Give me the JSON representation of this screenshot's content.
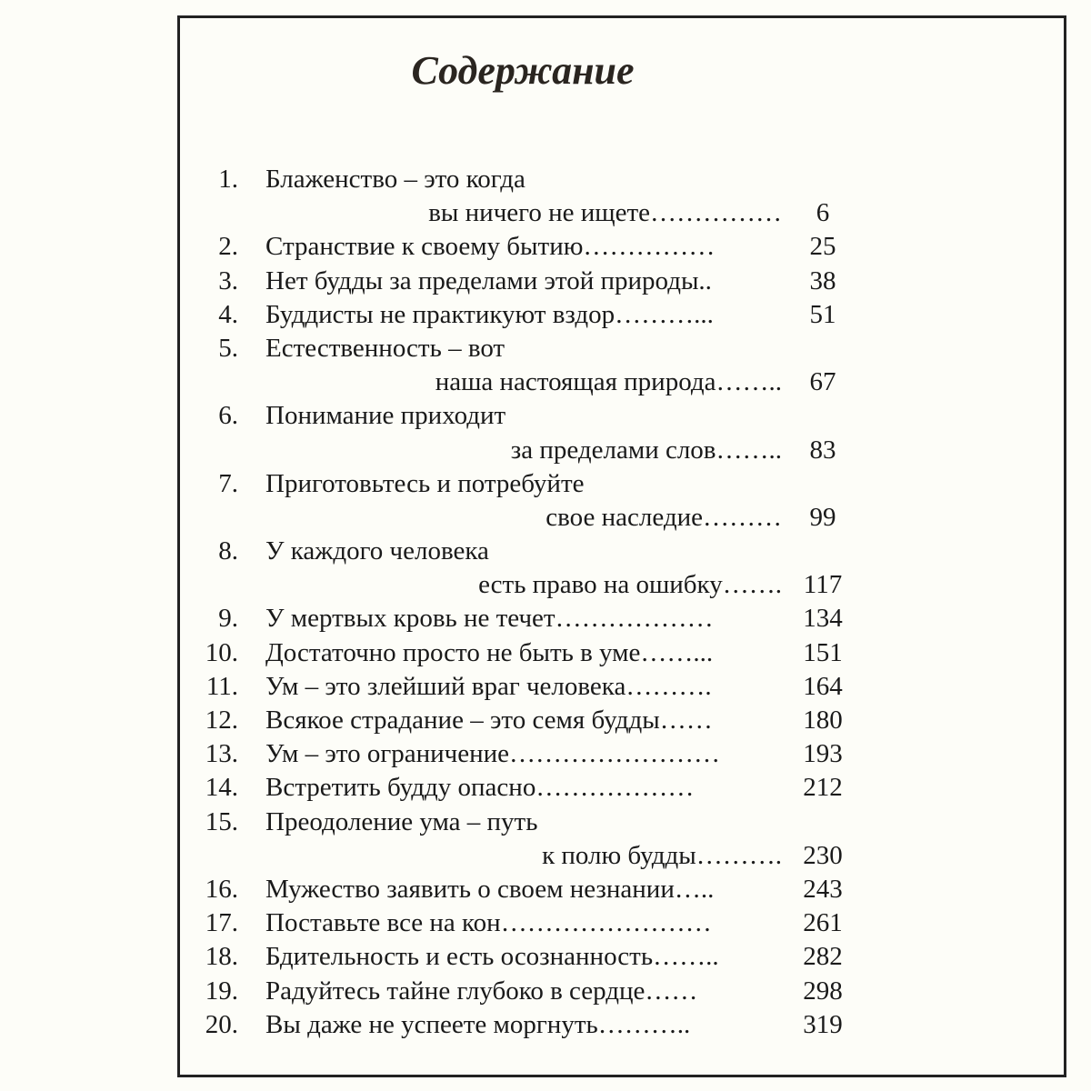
{
  "title": "Содержание",
  "entries": [
    {
      "num": "1.",
      "lines": [
        "Блаженство – это когда"
      ],
      "cont": "вы ничего не ищете……………",
      "page": "6"
    },
    {
      "num": "2.",
      "lines": [
        "Странствие к своему бытию……………"
      ],
      "page": "25"
    },
    {
      "num": "3.",
      "lines": [
        "Нет будды за пределами этой природы.."
      ],
      "page": "38"
    },
    {
      "num": "4.",
      "lines": [
        "Буддисты не практикуют вздор………..."
      ],
      "page": "51"
    },
    {
      "num": "5.",
      "lines": [
        "Естественность – вот"
      ],
      "cont": "наша настоящая природа……..",
      "page": "67"
    },
    {
      "num": "6.",
      "lines": [
        "Понимание приходит"
      ],
      "cont": "за пределами слов……..",
      "page": "83"
    },
    {
      "num": "7.",
      "lines": [
        "Приготовьтесь и потребуйте"
      ],
      "cont": "свое наследие………",
      "page": "99"
    },
    {
      "num": "8.",
      "lines": [
        "У каждого человека"
      ],
      "cont": "есть право на ошибку…….",
      "page": "117"
    },
    {
      "num": "9.",
      "lines": [
        "У мертвых кровь не течет………………"
      ],
      "page": "134"
    },
    {
      "num": "10.",
      "lines": [
        "Достаточно просто не быть в уме……..."
      ],
      "page": "151"
    },
    {
      "num": "11.",
      "lines": [
        "Ум – это злейший враг человека………."
      ],
      "page": "164"
    },
    {
      "num": "12.",
      "lines": [
        "Всякое страдание – это семя будды……"
      ],
      "page": "180"
    },
    {
      "num": "13.",
      "lines": [
        "Ум – это ограничение……………………"
      ],
      "page": "193"
    },
    {
      "num": "14.",
      "lines": [
        "Встретить будду опасно………………"
      ],
      "page": "212"
    },
    {
      "num": "15.",
      "lines": [
        "Преодоление ума – путь"
      ],
      "cont": "к полю будды……….",
      "page": "230"
    },
    {
      "num": "16.",
      "lines": [
        "Мужество заявить о своем незнании….."
      ],
      "page": "243"
    },
    {
      "num": "17.",
      "lines": [
        "Поставьте все на кон……………………"
      ],
      "page": "261"
    },
    {
      "num": "18.",
      "lines": [
        "Бдительность и есть осознанность…….."
      ],
      "page": "282"
    },
    {
      "num": "19.",
      "lines": [
        "Радуйтесь тайне глубоко в сердце……"
      ],
      "page": "298"
    },
    {
      "num": "20.",
      "lines": [
        "Вы даже не успеете моргнуть……….."
      ],
      "page": "319"
    }
  ]
}
